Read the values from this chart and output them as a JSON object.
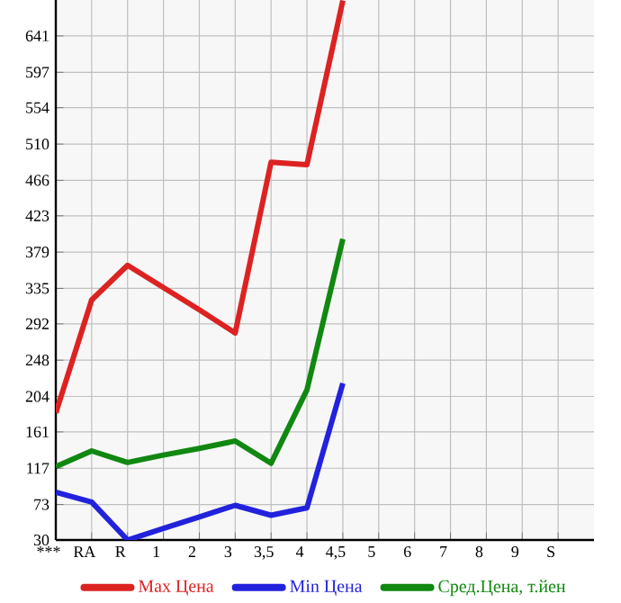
{
  "chart_data": {
    "type": "line",
    "categories": [
      "***",
      "RA",
      "R",
      "1",
      "2",
      "3",
      "3,5",
      "4",
      "4,5",
      "5",
      "6",
      "7",
      "8",
      "9",
      "S"
    ],
    "series": [
      {
        "name": "Max Цена",
        "color": "#dd2222",
        "values": [
          184,
          321,
          363,
          336,
          309,
          281,
          488,
          485,
          684,
          null,
          null,
          null,
          null,
          null,
          null
        ]
      },
      {
        "name": "Min Цена",
        "color": "#2222dd",
        "values": [
          88,
          76,
          30,
          44,
          58,
          72,
          60,
          69,
          220,
          null,
          null,
          null,
          null,
          null,
          null
        ]
      },
      {
        "name": "Сред.Цена, т.йен",
        "color": "#118811",
        "values": [
          119,
          138,
          124,
          133,
          141,
          150,
          123,
          212,
          395,
          null,
          null,
          null,
          null,
          null,
          null
        ]
      }
    ],
    "ylim": [
      30,
      684.6
    ],
    "yticks": [
      30,
      73,
      117,
      161,
      204,
      248,
      292,
      335,
      379,
      423,
      466,
      510,
      554,
      597,
      641
    ],
    "grid": true,
    "legend": "bottom",
    "marker": "none",
    "line_style": "solid"
  }
}
